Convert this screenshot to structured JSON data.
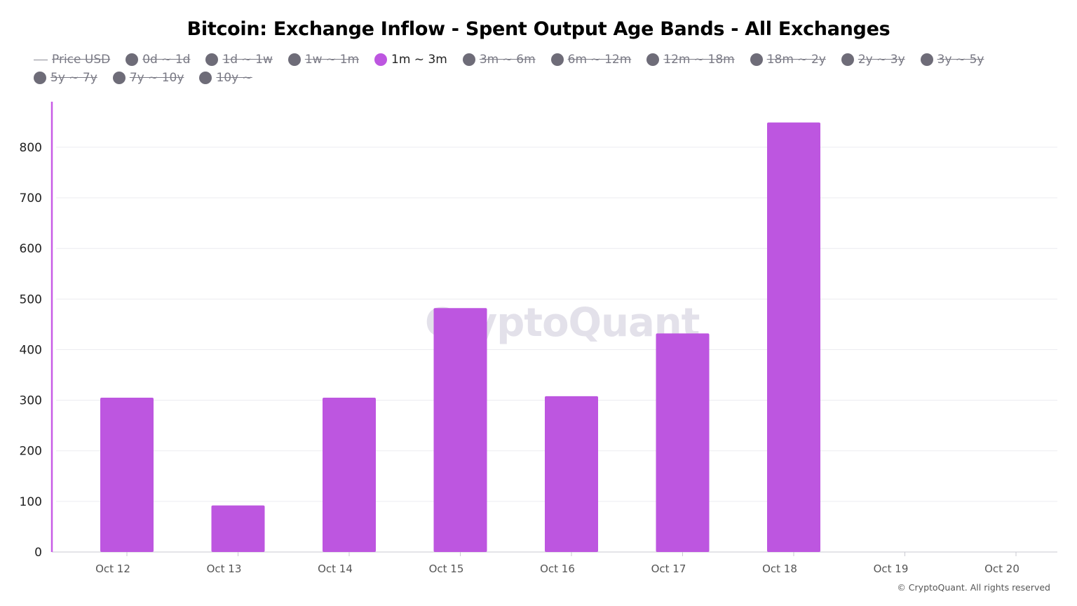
{
  "chart_data": {
    "type": "bar",
    "title": "Bitcoin: Exchange Inflow - Spent Output Age Bands - All Exchanges",
    "categories": [
      "Oct 12",
      "Oct 13",
      "Oct 14",
      "Oct 15",
      "Oct 16",
      "Oct 17",
      "Oct 18",
      "Oct 19",
      "Oct 20"
    ],
    "series": [
      {
        "name": "1m ~ 3m",
        "values": [
          305,
          92,
          305,
          482,
          308,
          432,
          849,
          null,
          null
        ],
        "color": "#bd56e0"
      }
    ],
    "ylim": [
      0,
      890
    ],
    "yticks": [
      "0",
      "100",
      "200",
      "300",
      "400",
      "500",
      "600",
      "700",
      "800"
    ],
    "grid": true,
    "legend_position": "top",
    "legend": [
      {
        "label": "Price USD",
        "marker": "line",
        "active": false
      },
      {
        "label": "0d ~ 1d",
        "marker": "dot",
        "active": false
      },
      {
        "label": "1d ~ 1w",
        "marker": "dot",
        "active": false
      },
      {
        "label": "1w ~ 1m",
        "marker": "dot",
        "active": false
      },
      {
        "label": "1m ~ 3m",
        "marker": "dot",
        "active": true
      },
      {
        "label": "3m ~ 6m",
        "marker": "dot",
        "active": false
      },
      {
        "label": "6m ~ 12m",
        "marker": "dot",
        "active": false
      },
      {
        "label": "12m ~ 18m",
        "marker": "dot",
        "active": false
      },
      {
        "label": "18m ~ 2y",
        "marker": "dot",
        "active": false
      },
      {
        "label": "2y ~ 3y",
        "marker": "dot",
        "active": false
      },
      {
        "label": "3y ~ 5y",
        "marker": "dot",
        "active": false
      },
      {
        "label": "5y ~ 7y",
        "marker": "dot",
        "active": false
      },
      {
        "label": "7y ~ 10y",
        "marker": "dot",
        "active": false
      },
      {
        "label": "10y ~",
        "marker": "dot",
        "active": false
      }
    ]
  },
  "colors": {
    "active_series": "#bd56e0",
    "inactive_dot": "#6e6c78",
    "axis_accent": "#c75ce6",
    "grid": "#ececf0"
  },
  "watermark": "CryptoQuant",
  "copyright": "© CryptoQuant. All rights reserved"
}
